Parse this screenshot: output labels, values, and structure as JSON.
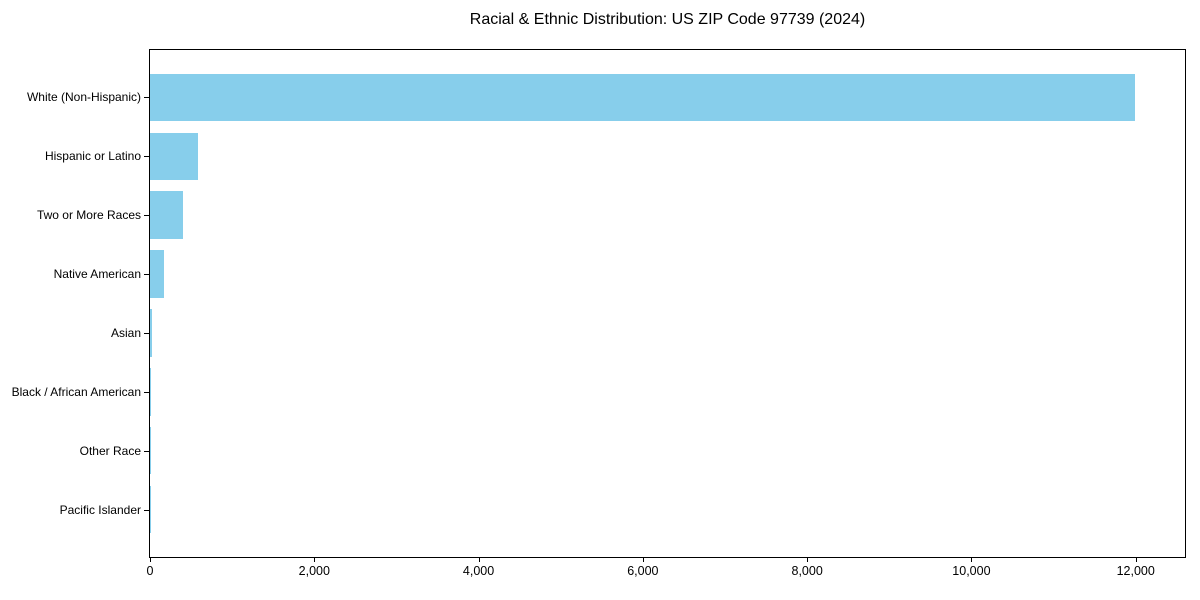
{
  "figure": {
    "background": "#ffffff",
    "text_color": "#000000",
    "spine_color": "#000000"
  },
  "chart_data": {
    "type": "bar",
    "orientation": "horizontal",
    "title": "Racial & Ethnic Distribution: US ZIP Code 97739 (2024)",
    "categories": [
      "White (Non-Hispanic)",
      "Hispanic or Latino",
      "Two or More Races",
      "Native American",
      "Asian",
      "Black / African American",
      "Other Race",
      "Pacific Islander"
    ],
    "values": [
      11990,
      580,
      405,
      170,
      30,
      12,
      8,
      2
    ],
    "bar_color": "#87CEEB",
    "xlabel": "",
    "ylabel": "",
    "xlim": [
      0,
      12600
    ],
    "x_ticks": [
      0,
      2000,
      4000,
      6000,
      8000,
      10000,
      12000
    ],
    "x_tick_labels": [
      "0",
      "2,000",
      "4,000",
      "6,000",
      "8,000",
      "10,000",
      "12,000"
    ],
    "grid": false,
    "legend": false
  }
}
